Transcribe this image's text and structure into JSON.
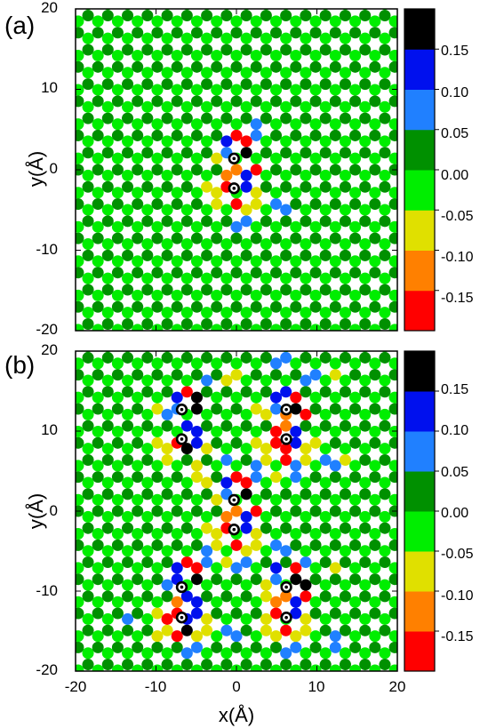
{
  "chart_data": [
    {
      "type": "heatmap",
      "panel_label": "(a)",
      "xlabel": "",
      "ylabel": "y(Å)",
      "xlim": [
        -20,
        20
      ],
      "ylim": [
        -20,
        20
      ],
      "x_ticks": [],
      "y_ticks": [
        "20",
        "10",
        "0",
        "-10",
        "-20"
      ],
      "lattice": "honeycomb graphene, atom values shown as colored circles",
      "background_values": {
        "sublattice_A": 0.02,
        "sublattice_B": -0.02
      },
      "defects": [
        {
          "x": -0.3,
          "y": 1.4,
          "marker": "dot-in-circle"
        },
        {
          "x": -0.3,
          "y": -2.3,
          "marker": "dot-in-circle"
        }
      ],
      "perturbed_atoms": [
        {
          "x": 0.6,
          "y": 3.6,
          "value": -0.17
        },
        {
          "x": -0.7,
          "y": 3.5,
          "value": 0.12
        },
        {
          "x": 1.5,
          "y": 2.2,
          "value": 0.18
        },
        {
          "x": -1.6,
          "y": 1.5,
          "value": 0.07
        },
        {
          "x": 1.6,
          "y": 0.5,
          "value": -0.17
        },
        {
          "x": -3.1,
          "y": 1.0,
          "value": -0.07
        },
        {
          "x": -0.8,
          "y": -0.2,
          "value": -0.13
        },
        {
          "x": 0.8,
          "y": -0.4,
          "value": 0.12
        },
        {
          "x": -1.6,
          "y": -2.3,
          "value": -0.17
        },
        {
          "x": 1.2,
          "y": -2.3,
          "value": 0.12
        },
        {
          "x": -3.0,
          "y": -2.6,
          "value": -0.08
        },
        {
          "x": 0.6,
          "y": -3.8,
          "value": 0.18
        },
        {
          "x": -0.6,
          "y": -3.9,
          "value": -0.17
        },
        {
          "x": 2.9,
          "y": -2.9,
          "value": -0.07
        },
        {
          "x": 1.6,
          "y": -4.8,
          "value": -0.08
        },
        {
          "x": 5.6,
          "y": -5.0,
          "value": 0.08
        },
        {
          "x": 0.4,
          "y": -6.3,
          "value": 0.09
        },
        {
          "x": 3.0,
          "y": 5.0,
          "value": 0.09
        },
        {
          "x": 5.9,
          "y": 4.8,
          "value": -0.07
        },
        {
          "x": -2.5,
          "y": -4.4,
          "value": -0.07
        }
      ]
    },
    {
      "type": "heatmap",
      "panel_label": "(b)",
      "xlabel": "x(Å)",
      "ylabel": "y(Å)",
      "xlim": [
        -20,
        20
      ],
      "ylim": [
        -20,
        20
      ],
      "x_ticks": [
        "-20",
        "-10",
        "0",
        "10",
        "20"
      ],
      "y_ticks": [
        "20",
        "10",
        "0",
        "-10",
        "-20"
      ],
      "lattice": "honeycomb graphene, atom values shown as colored circles",
      "background_values": {
        "sublattice_A": 0.02,
        "sublattice_B": -0.02
      },
      "defects": [
        {
          "x": -6.8,
          "y": 12.7,
          "marker": "dot-in-circle"
        },
        {
          "x": -6.8,
          "y": 9.0,
          "marker": "dot-in-circle"
        },
        {
          "x": 6.2,
          "y": 12.7,
          "marker": "dot-in-circle"
        },
        {
          "x": 6.2,
          "y": 9.0,
          "marker": "dot-in-circle"
        },
        {
          "x": -0.3,
          "y": 1.4,
          "marker": "dot-in-circle"
        },
        {
          "x": -0.3,
          "y": -2.3,
          "marker": "dot-in-circle"
        },
        {
          "x": -6.8,
          "y": -9.5,
          "marker": "dot-in-circle"
        },
        {
          "x": -6.8,
          "y": -13.3,
          "marker": "dot-in-circle"
        },
        {
          "x": 6.2,
          "y": -9.5,
          "marker": "dot-in-circle"
        },
        {
          "x": 6.2,
          "y": -13.3,
          "marker": "dot-in-circle"
        }
      ],
      "cluster_centers": [
        {
          "x": -6.8,
          "y": 10.9
        },
        {
          "x": 6.2,
          "y": 10.9
        },
        {
          "x": -0.3,
          "y": -0.5
        },
        {
          "x": -6.8,
          "y": -11.4
        },
        {
          "x": 6.2,
          "y": -11.4
        }
      ],
      "extra_atoms": [
        {
          "x": 5.8,
          "y": 18.5,
          "value": 0.08
        },
        {
          "x": 13.6,
          "y": 6.7,
          "value": -0.07
        },
        {
          "x": 12.2,
          "y": -6.0,
          "value": -0.07
        },
        {
          "x": -13.5,
          "y": -13.4,
          "value": 0.08
        },
        {
          "x": 12.4,
          "y": -16.2,
          "value": 0.08
        },
        {
          "x": -6.0,
          "y": -17.1,
          "value": 0.08
        },
        {
          "x": 3.2,
          "y": 4.8,
          "value": 0.09
        },
        {
          "x": -4.1,
          "y": 4.1,
          "value": -0.07
        }
      ]
    }
  ],
  "colorbar": {
    "ticks": [
      "0.15",
      "0.10",
      "0.05",
      "0.00",
      "-0.05",
      "-0.10",
      "-0.15"
    ],
    "bands": [
      {
        "min": -0.2,
        "max": -0.15,
        "color": "#ff0000"
      },
      {
        "min": -0.15,
        "max": -0.1,
        "color": "#ff8000"
      },
      {
        "min": -0.1,
        "max": -0.05,
        "color": "#e0e000"
      },
      {
        "min": -0.05,
        "max": 0.0,
        "color": "#00ee00"
      },
      {
        "min": 0.0,
        "max": 0.05,
        "color": "#009000"
      },
      {
        "min": 0.05,
        "max": 0.1,
        "color": "#2080ff"
      },
      {
        "min": 0.1,
        "max": 0.15,
        "color": "#0010ee"
      },
      {
        "min": 0.15,
        "max": 0.2,
        "color": "#000000"
      }
    ]
  },
  "colors": {
    "light_green": "#00ee00",
    "dark_green": "#009000",
    "axis": "#000000",
    "background": "#ffffff"
  }
}
